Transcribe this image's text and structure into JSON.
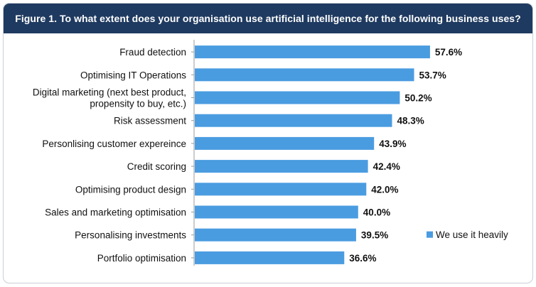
{
  "chart_data": {
    "type": "bar",
    "orientation": "horizontal",
    "title": "Figure 1. To what extent does your organisation use artificial intelligence for the following business uses?",
    "categories": [
      "Fraud detection",
      "Optimising IT Operations",
      "Digital marketing (next best product, propensity to buy, etc.)",
      "Risk assessment",
      "Personlising customer expereince",
      "Credit scoring",
      "Optimising product design",
      "Sales and marketing optimisation",
      "Personalising investments",
      "Portfolio optimisation"
    ],
    "category_lines": [
      [
        "Fraud detection"
      ],
      [
        "Optimising IT Operations"
      ],
      [
        "Digital marketing (next best product,",
        "propensity to buy, etc.)"
      ],
      [
        "Risk assessment"
      ],
      [
        "Personlising customer expereince"
      ],
      [
        "Credit scoring"
      ],
      [
        "Optimising product design"
      ],
      [
        "Sales and marketing optimisation"
      ],
      [
        "Personalising investments"
      ],
      [
        "Portfolio optimisation"
      ]
    ],
    "series": [
      {
        "name": "We use it heavily",
        "color": "#4a9ce0",
        "values": [
          57.6,
          53.7,
          50.2,
          48.3,
          43.9,
          42.4,
          42.0,
          40.0,
          39.5,
          36.6
        ],
        "labels": [
          "57.6%",
          "53.7%",
          "50.2%",
          "48.3%",
          "43.9%",
          "42.4%",
          "42.0%",
          "40.0%",
          "39.5%",
          "36.6%"
        ]
      }
    ],
    "xlim": [
      0,
      100
    ],
    "grid": false,
    "legend_position": "right"
  },
  "colors": {
    "title_bar": "#1f3a60",
    "title_text": "#ffffff",
    "axis": "#9a9a9a"
  }
}
